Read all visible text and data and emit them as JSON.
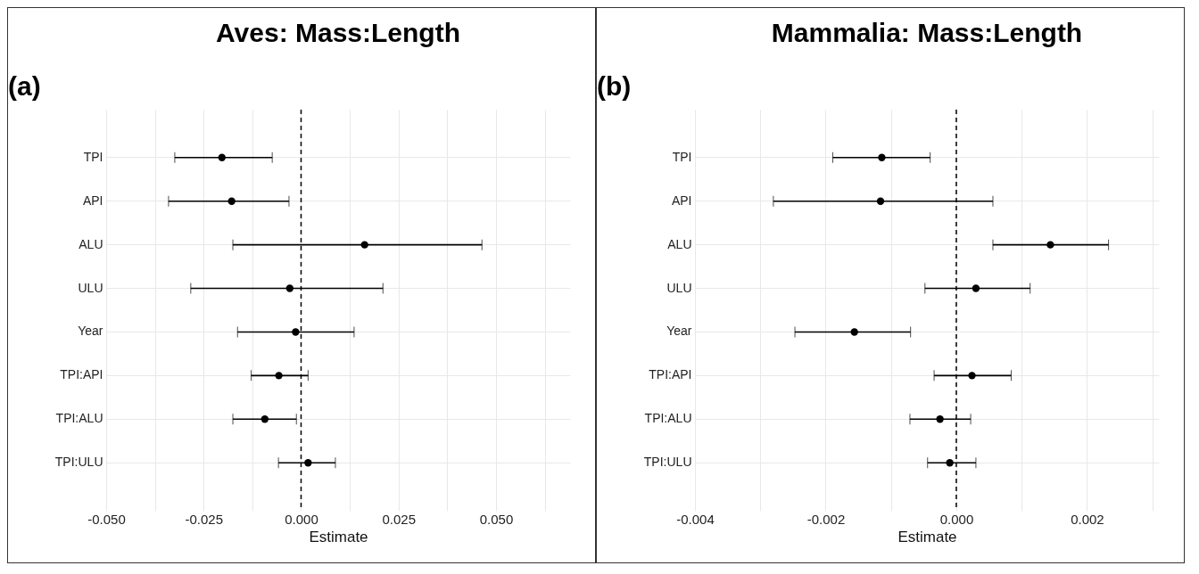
{
  "chart_data": [
    {
      "type": "scatter",
      "orientation": "horizontal",
      "title": "Aves: Mass:Length",
      "xlabel": "Estimate",
      "annotations": [
        "(a)"
      ],
      "categories": [
        "TPI",
        "API",
        "ALU",
        "ULU",
        "Year",
        "TPI:API",
        "TPI:ALU",
        "TPI:ULU"
      ],
      "values": [
        -0.0203,
        -0.0178,
        0.0163,
        -0.0029,
        -0.0014,
        -0.0057,
        -0.0093,
        0.0018
      ],
      "errors": [
        [
          -0.0324,
          -0.0074
        ],
        [
          -0.034,
          -0.0031
        ],
        [
          -0.0175,
          0.0464
        ],
        [
          -0.0283,
          0.021
        ],
        [
          -0.0163,
          0.0136
        ],
        [
          -0.0128,
          0.0018
        ],
        [
          -0.0175,
          -0.0012
        ],
        [
          -0.0058,
          0.0088
        ]
      ],
      "colors": [
        "#000000",
        "#000000",
        "#000000",
        "#000000",
        "#000000",
        "#000000",
        "#000000",
        "#000000"
      ],
      "xlim": [
        -0.05,
        0.069
      ],
      "xticks": [
        {
          "value": -0.05,
          "label": "-0.050"
        },
        {
          "value": -0.0375,
          "label": null
        },
        {
          "value": -0.025,
          "label": "-0.025"
        },
        {
          "value": -0.0125,
          "label": null
        },
        {
          "value": 0,
          "label": "0.000"
        },
        {
          "value": 0.0125,
          "label": null
        },
        {
          "value": 0.025,
          "label": "0.025"
        },
        {
          "value": 0.0375,
          "label": null
        },
        {
          "value": 0.05,
          "label": "0.050"
        },
        {
          "value": 0.0625,
          "label": null
        }
      ],
      "ref_lines": [
        {
          "axis": "x",
          "value": 0,
          "label": null,
          "color": "#000000",
          "line_style": "dashed"
        }
      ],
      "grid": true,
      "marker": "circle"
    },
    {
      "type": "scatter",
      "orientation": "horizontal",
      "title": "Mammalia: Mass:Length",
      "xlabel": "Estimate",
      "annotations": [
        "(b)"
      ],
      "categories": [
        "TPI",
        "API",
        "ALU",
        "ULU",
        "Year",
        "TPI:API",
        "TPI:ALU",
        "TPI:ULU"
      ],
      "values": [
        -0.00114,
        -0.00116,
        0.00144,
        0.0003,
        -0.00156,
        0.00024,
        -0.00025,
        -0.0001
      ],
      "errors": [
        [
          -0.00189,
          -0.0004
        ],
        [
          -0.0028,
          0.00056
        ],
        [
          0.00056,
          0.00233
        ],
        [
          -0.00048,
          0.00113
        ],
        [
          -0.00247,
          -0.0007
        ],
        [
          -0.00034,
          0.00084
        ],
        [
          -0.00071,
          0.00022
        ],
        [
          -0.00044,
          0.0003
        ]
      ],
      "colors": [
        "#000000",
        "#000000",
        "#000000",
        "#000000",
        "#000000",
        "#000000",
        "#000000",
        "#000000"
      ],
      "xlim": [
        -0.004,
        0.0031
      ],
      "xticks": [
        {
          "value": -0.004,
          "label": "-0.004"
        },
        {
          "value": -0.003,
          "label": null
        },
        {
          "value": -0.002,
          "label": "-0.002"
        },
        {
          "value": -0.001,
          "label": null
        },
        {
          "value": 0,
          "label": "0.000"
        },
        {
          "value": 0.001,
          "label": null
        },
        {
          "value": 0.002,
          "label": "0.002"
        },
        {
          "value": 0.003,
          "label": null
        }
      ],
      "ref_lines": [
        {
          "axis": "x",
          "value": 0,
          "label": null,
          "color": "#000000",
          "line_style": "dashed"
        }
      ],
      "grid": true,
      "marker": "circle"
    }
  ]
}
